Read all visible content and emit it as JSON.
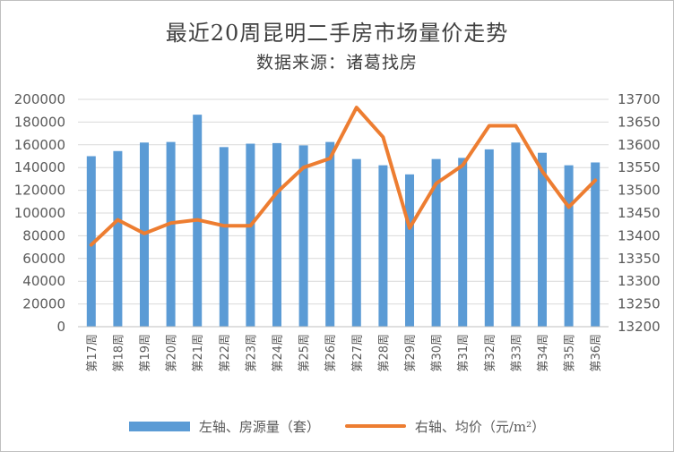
{
  "chart_data": {
    "type": "bar+line",
    "title": "最近20周昆明二手房市场量价走势",
    "subtitle": "数据来源：诸葛找房",
    "categories": [
      "第17周",
      "第18周",
      "第19周",
      "第20周",
      "第21周",
      "第22周",
      "第23周",
      "第24周",
      "第25周",
      "第26周",
      "第27周",
      "第28周",
      "第29周",
      "第30周",
      "第31周",
      "第32周",
      "第33周",
      "第34周",
      "第35周",
      "第36周"
    ],
    "series": [
      {
        "name": "左轴、房源量（套）",
        "type": "bar",
        "axis": "left",
        "color": "#5b9bd5",
        "values": [
          150000,
          154500,
          162000,
          162500,
          186500,
          158000,
          161000,
          161500,
          159500,
          162500,
          147500,
          142000,
          134000,
          147500,
          148500,
          156000,
          162000,
          153000,
          142000,
          144500
        ]
      },
      {
        "name": "右轴、均价（元/m²）",
        "type": "line",
        "axis": "right",
        "color": "#ed7d31",
        "values": [
          13380,
          13435,
          13405,
          13428,
          13435,
          13422,
          13422,
          13495,
          13550,
          13570,
          13682,
          13617,
          13417,
          13515,
          13555,
          13642,
          13642,
          13542,
          13463,
          13522
        ]
      }
    ],
    "y_left": {
      "min": 0,
      "max": 200000,
      "step": 20000,
      "ticks": [
        "0",
        "20000",
        "40000",
        "60000",
        "80000",
        "100000",
        "120000",
        "140000",
        "160000",
        "180000",
        "200000"
      ]
    },
    "y_right": {
      "min": 13200,
      "max": 13700,
      "step": 50,
      "ticks": [
        "13200",
        "13250",
        "13300",
        "13350",
        "13400",
        "13450",
        "13500",
        "13550",
        "13600",
        "13650",
        "13700"
      ]
    },
    "grid": true,
    "legend": "bottom"
  }
}
